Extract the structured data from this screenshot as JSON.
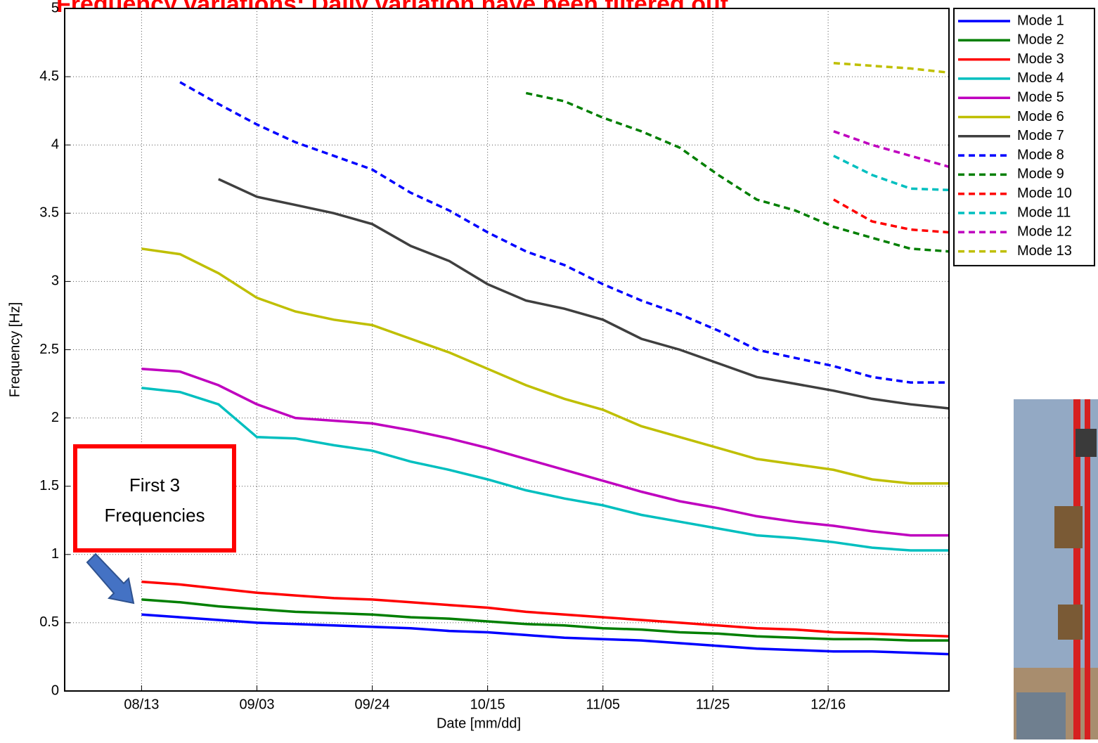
{
  "title": "Frequency variations: Daily variation have been filtered out",
  "annotation": [
    "First 3",
    "Frequencies"
  ],
  "chart_data": {
    "type": "line",
    "x_label": "Date [mm/dd]",
    "y_label": "Frequency [Hz]",
    "x": [
      "08/13",
      "08/20",
      "08/27",
      "09/03",
      "09/10",
      "09/17",
      "09/24",
      "10/01",
      "10/08",
      "10/15",
      "10/22",
      "10/29",
      "11/05",
      "11/12",
      "11/19",
      "11/26",
      "12/03",
      "12/10",
      "12/17",
      "12/24",
      "12/31",
      "01/07"
    ],
    "xlim": [
      "07/30",
      "01/07"
    ],
    "xticks": [
      "08/13",
      "09/03",
      "09/24",
      "10/15",
      "11/05",
      "11/25",
      "12/16"
    ],
    "ylim": [
      0,
      5
    ],
    "yticks": [
      0,
      0.5,
      1,
      1.5,
      2,
      2.5,
      3,
      3.5,
      4,
      4.5,
      5
    ],
    "grid": true,
    "legend": "outside-right",
    "series": [
      {
        "name": "Mode 1",
        "color": "#0000ff",
        "style": "solid",
        "values": [
          0.56,
          0.54,
          0.52,
          0.5,
          0.49,
          0.48,
          0.47,
          0.46,
          0.44,
          0.43,
          0.41,
          0.39,
          0.38,
          0.37,
          0.35,
          0.33,
          0.31,
          0.3,
          0.29,
          0.29,
          0.28,
          0.27
        ]
      },
      {
        "name": "Mode 2",
        "color": "#007f00",
        "style": "solid",
        "values": [
          0.67,
          0.65,
          0.62,
          0.6,
          0.58,
          0.57,
          0.56,
          0.54,
          0.53,
          0.51,
          0.49,
          0.48,
          0.46,
          0.45,
          0.43,
          0.42,
          0.4,
          0.39,
          0.38,
          0.38,
          0.37,
          0.37
        ]
      },
      {
        "name": "Mode 3",
        "color": "#ff0000",
        "style": "solid",
        "values": [
          0.8,
          0.78,
          0.75,
          0.72,
          0.7,
          0.68,
          0.67,
          0.65,
          0.63,
          0.61,
          0.58,
          0.56,
          0.54,
          0.52,
          0.5,
          0.48,
          0.46,
          0.45,
          0.43,
          0.42,
          0.41,
          0.4
        ]
      },
      {
        "name": "Mode 4",
        "color": "#00bfbf",
        "style": "solid",
        "values": [
          2.22,
          2.19,
          2.1,
          1.86,
          1.85,
          1.8,
          1.76,
          1.68,
          1.62,
          1.55,
          1.47,
          1.41,
          1.36,
          1.29,
          1.24,
          1.19,
          1.14,
          1.12,
          1.09,
          1.05,
          1.03,
          1.03
        ]
      },
      {
        "name": "Mode 5",
        "color": "#bf00bf",
        "style": "solid",
        "values": [
          2.36,
          2.34,
          2.24,
          2.1,
          2.0,
          1.98,
          1.96,
          1.91,
          1.85,
          1.78,
          1.7,
          1.62,
          1.54,
          1.46,
          1.39,
          1.34,
          1.28,
          1.24,
          1.21,
          1.17,
          1.14,
          1.14
        ]
      },
      {
        "name": "Mode 6",
        "color": "#bfbf00",
        "style": "solid",
        "values": [
          3.24,
          3.2,
          3.06,
          2.88,
          2.78,
          2.72,
          2.68,
          2.58,
          2.48,
          2.36,
          2.24,
          2.14,
          2.06,
          1.94,
          1.86,
          1.78,
          1.7,
          1.66,
          1.62,
          1.55,
          1.52,
          1.52
        ]
      },
      {
        "name": "Mode 7",
        "color": "#3f3f3f",
        "style": "solid",
        "values": [
          null,
          null,
          3.75,
          3.62,
          3.56,
          3.5,
          3.42,
          3.26,
          3.15,
          2.98,
          2.86,
          2.8,
          2.72,
          2.58,
          2.5,
          2.4,
          2.3,
          2.25,
          2.2,
          2.14,
          2.1,
          2.07
        ]
      },
      {
        "name": "Mode 8",
        "color": "#0000ff",
        "style": "dashed",
        "values": [
          null,
          4.46,
          4.3,
          4.15,
          4.02,
          3.92,
          3.82,
          3.65,
          3.52,
          3.36,
          3.22,
          3.12,
          2.98,
          2.86,
          2.76,
          2.64,
          2.5,
          2.44,
          2.38,
          2.3,
          2.26,
          2.26
        ]
      },
      {
        "name": "Mode 9",
        "color": "#007f00",
        "style": "dashed",
        "values": [
          null,
          null,
          null,
          null,
          null,
          null,
          null,
          null,
          null,
          null,
          4.38,
          4.32,
          4.2,
          4.1,
          3.98,
          3.78,
          3.6,
          3.52,
          3.4,
          3.32,
          3.24,
          3.22
        ]
      },
      {
        "name": "Mode 10",
        "color": "#ff0000",
        "style": "dashed",
        "values": [
          null,
          null,
          null,
          null,
          null,
          null,
          null,
          null,
          null,
          null,
          null,
          null,
          null,
          null,
          null,
          null,
          null,
          null,
          3.6,
          3.44,
          3.38,
          3.36
        ]
      },
      {
        "name": "Mode 11",
        "color": "#00bfbf",
        "style": "dashed",
        "values": [
          null,
          null,
          null,
          null,
          null,
          null,
          null,
          null,
          null,
          null,
          null,
          null,
          null,
          null,
          null,
          null,
          null,
          null,
          3.92,
          3.78,
          3.68,
          3.67
        ]
      },
      {
        "name": "Mode 12",
        "color": "#bf00bf",
        "style": "dashed",
        "values": [
          null,
          null,
          null,
          null,
          null,
          null,
          null,
          null,
          null,
          null,
          null,
          null,
          null,
          null,
          null,
          null,
          null,
          null,
          4.1,
          4.0,
          3.92,
          3.84
        ]
      },
      {
        "name": "Mode 13",
        "color": "#bfbf00",
        "style": "dashed",
        "values": [
          null,
          null,
          null,
          null,
          null,
          null,
          null,
          null,
          null,
          null,
          null,
          null,
          null,
          null,
          null,
          null,
          null,
          null,
          4.6,
          4.58,
          4.56,
          4.53
        ]
      }
    ]
  }
}
